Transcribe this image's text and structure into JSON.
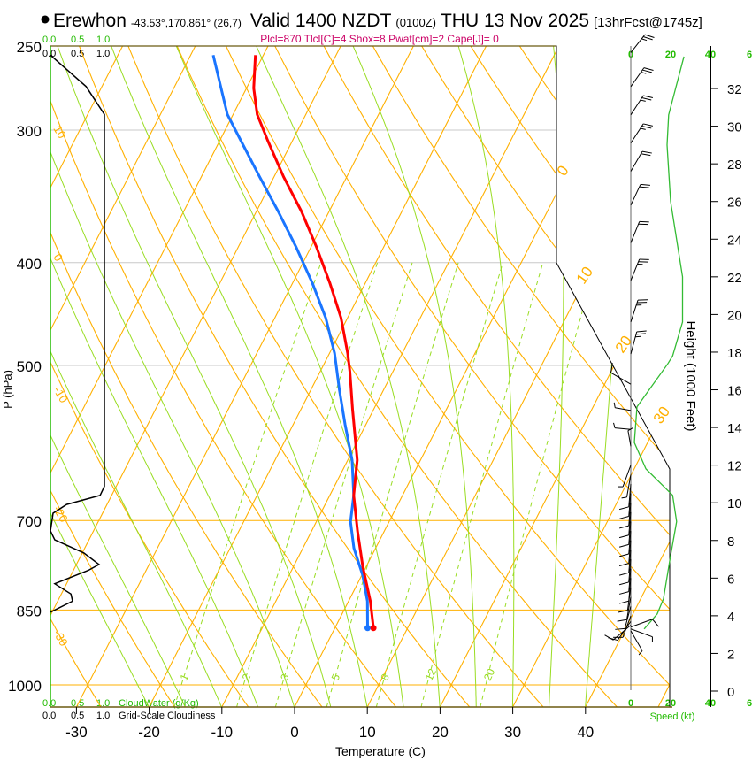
{
  "header": {
    "station": "Erewhon",
    "coords": "-43.53°,170.861° (26,7)",
    "valid": "Valid 1400 NZDT",
    "utc": "(0100Z)",
    "date": "THU 13 Nov 2025",
    "forecast": "[13hrFcst@1745z]",
    "indices": "Plcl=870 Tlcl[C]=4 Shox=8 Pwat[cm]=2 Cape[J]= 0"
  },
  "cloud_scale": {
    "ticks": [
      "0.0",
      "0.5",
      "1.0"
    ],
    "cloudwater_label": "CloudWater (g/Kg)",
    "cloudiness_label": "Grid-Scale Cloudiness"
  },
  "speed_scale": {
    "ticks": [
      "0",
      "20",
      "40",
      "6"
    ],
    "label": "Speed (kt)"
  },
  "colors": {
    "temperature": "#ff0000",
    "dewpoint": "#1a75ff",
    "isotherm": "#ffb000",
    "moist": "#99dd22",
    "speed": "#33bb33",
    "label_green": "#22bb00",
    "indices": "#cc0066"
  },
  "chart_data": {
    "type": "line",
    "title": "Skew-T log-P sounding",
    "xlabel": "Temperature (C)",
    "ylabel": "P (hPa)",
    "y2label": "Height (1000 Feet)",
    "pressure_ticks": [
      "250",
      "300",
      "400",
      "500",
      "700",
      "850",
      "1000"
    ],
    "temperature_ticks": [
      "-30",
      "-20",
      "-10",
      "0",
      "10",
      "20",
      "30",
      "40"
    ],
    "height_ticks": [
      "0",
      "2",
      "4",
      "6",
      "8",
      "10",
      "12",
      "14",
      "16",
      "18",
      "20",
      "22",
      "24",
      "26",
      "28",
      "30",
      "32"
    ],
    "isotherm_labels": [
      "0",
      "10",
      "20",
      "30"
    ],
    "adiabat_labels": [
      "10",
      "0",
      "-10",
      "-20",
      "-30"
    ],
    "mixing_ratio_labels": [
      "1",
      "2",
      "3",
      "5",
      "8",
      "12",
      "20"
    ],
    "xlim": [
      -34,
      52
    ],
    "ylim": [
      1048,
      250
    ],
    "series": [
      {
        "name": "Temperature",
        "p": [
          884,
          834,
          773,
          716,
          663,
          614,
          550,
          507,
          487,
          451,
          418,
          387,
          358,
          332,
          307,
          290,
          274,
          255
        ],
        "t": [
          5.3,
          3.0,
          -0.5,
          -3.7,
          -6.7,
          -8.7,
          -12.9,
          -15.9,
          -17.5,
          -20.9,
          -24.9,
          -29.2,
          -33.8,
          -38.7,
          -43.4,
          -46.7,
          -49.0,
          -51.1
        ]
      },
      {
        "name": "Dewpoint",
        "p": [
          884,
          834,
          788,
          743,
          702,
          663,
          614,
          568,
          527,
          487,
          451,
          418,
          387,
          358,
          332,
          307,
          290,
          274,
          255
        ],
        "t": [
          4.5,
          2.6,
          0.1,
          -3.0,
          -5.3,
          -6.7,
          -9.4,
          -12.9,
          -16.1,
          -19.3,
          -23.0,
          -27.3,
          -32.0,
          -37.0,
          -42.0,
          -47.1,
          -50.8,
          -53.5,
          -56.9
        ]
      }
    ],
    "cloudiness": {
      "p": [
        255,
        273,
        290,
        650,
        663,
        676,
        689,
        716,
        730,
        751,
        770,
        780,
        803,
        821,
        834,
        854
      ],
      "fraction": [
        0,
        0.66,
        1.0,
        1.0,
        0.92,
        0.3,
        0.05,
        0,
        0.08,
        0.62,
        0.9,
        0.7,
        0.08,
        0.38,
        0.41,
        0
      ]
    },
    "wind_speed_profile": {
      "height_kft": [
        3.3,
        4.1,
        4.9,
        7.2,
        9.0,
        10.4,
        11.8,
        13.2,
        15.1,
        17.4,
        17.8,
        19.6,
        22.0,
        26.0,
        29.0,
        30.6,
        33.7
      ],
      "speed_kt": [
        6.7,
        13.3,
        16.4,
        20,
        23,
        21,
        7.6,
        1.8,
        3.1,
        18.7,
        21,
        26,
        26,
        20,
        18.2,
        19,
        26.7
      ]
    },
    "wind_barbs": [
      {
        "h": 33.9,
        "spd": 25,
        "dir": 38
      },
      {
        "h": 32.1,
        "spd": 25,
        "dir": 35
      },
      {
        "h": 30.6,
        "spd": 25,
        "dir": 33
      },
      {
        "h": 29.1,
        "spd": 25,
        "dir": 33
      },
      {
        "h": 27.6,
        "spd": 22,
        "dir": 30
      },
      {
        "h": 25.8,
        "spd": 22,
        "dir": 25
      },
      {
        "h": 23.8,
        "spd": 22,
        "dir": 22
      },
      {
        "h": 21.8,
        "spd": 25,
        "dir": 22
      },
      {
        "h": 19.6,
        "spd": 25,
        "dir": 18
      },
      {
        "h": 17.9,
        "spd": 25,
        "dir": 15
      },
      {
        "h": 16.3,
        "spd": 10,
        "dir": 300
      },
      {
        "h": 14.9,
        "spd": 3,
        "dir": 280
      },
      {
        "h": 13.9,
        "spd": 3,
        "dir": 275
      },
      {
        "h": 13.0,
        "spd": 3,
        "dir": 350
      },
      {
        "h": 12.0,
        "spd": 5,
        "dir": 200
      },
      {
        "h": 11.5,
        "spd": 5,
        "dir": 190
      },
      {
        "h": 11.0,
        "spd": 8,
        "dir": 185
      },
      {
        "h": 10.5,
        "spd": 10,
        "dir": 185
      },
      {
        "h": 10.0,
        "spd": 10,
        "dir": 185
      },
      {
        "h": 9.5,
        "spd": 10,
        "dir": 185
      },
      {
        "h": 9.0,
        "spd": 10,
        "dir": 185
      },
      {
        "h": 8.5,
        "spd": 10,
        "dir": 185
      },
      {
        "h": 8.0,
        "spd": 10,
        "dir": 185
      },
      {
        "h": 7.5,
        "spd": 10,
        "dir": 185
      },
      {
        "h": 7.0,
        "spd": 10,
        "dir": 185
      },
      {
        "h": 6.5,
        "spd": 10,
        "dir": 185
      },
      {
        "h": 6.0,
        "spd": 10,
        "dir": 185
      },
      {
        "h": 5.5,
        "spd": 10,
        "dir": 188
      },
      {
        "h": 5.0,
        "spd": 10,
        "dir": 190
      },
      {
        "h": 4.5,
        "spd": 10,
        "dir": 195
      },
      {
        "h": 4.0,
        "spd": 10,
        "dir": 200
      },
      {
        "h": 3.7,
        "spd": 8,
        "dir": 215
      },
      {
        "h": 3.5,
        "spd": 8,
        "dir": 230
      },
      {
        "h": 3.4,
        "spd": 8,
        "dir": 70
      },
      {
        "h": 3.3,
        "spd": 5,
        "dir": 110
      },
      {
        "h": 3.2,
        "spd": 5,
        "dir": 150
      }
    ]
  }
}
